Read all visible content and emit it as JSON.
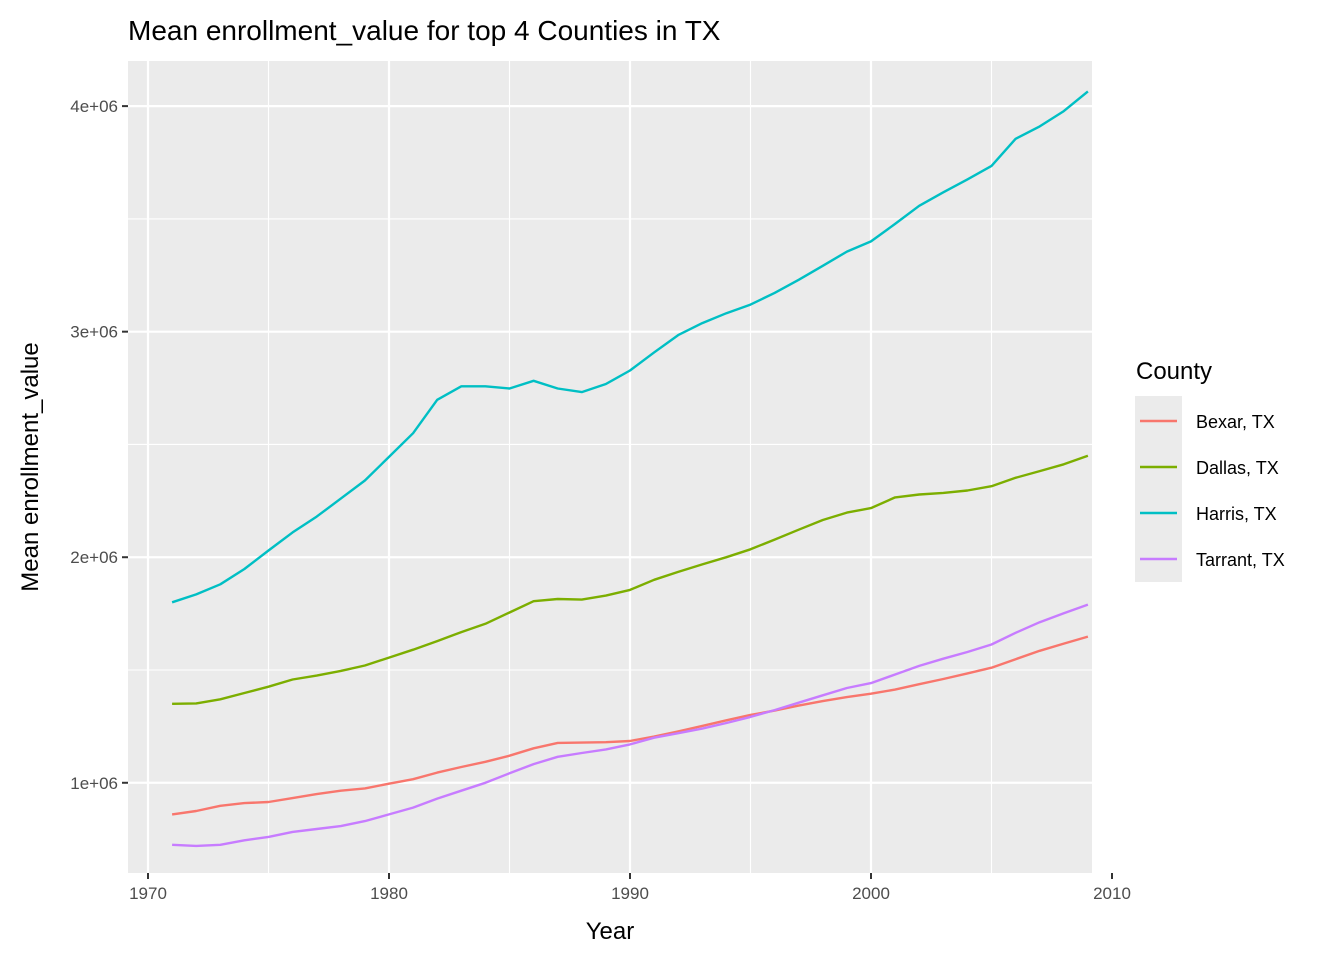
{
  "chart_data": {
    "type": "line",
    "title": "Mean enrollment_value for top 4 Counties in TX",
    "xlabel": "Year",
    "ylabel": "Mean enrollment_value",
    "xlim": [
      1970,
      2010
    ],
    "ylim": [
      600000,
      4200000
    ],
    "x_ticks": [
      1970,
      1980,
      1990,
      2000,
      2010
    ],
    "x_tick_labels": [
      "1970",
      "1980",
      "1990",
      "2000",
      "2010"
    ],
    "y_ticks": [
      1000000,
      2000000,
      3000000,
      4000000
    ],
    "y_tick_labels": [
      "1e+06",
      "2e+06",
      "3e+06",
      "4e+06"
    ],
    "grid": true,
    "legend_title": "County",
    "legend_placement": "right",
    "x": [
      1971,
      1972,
      1973,
      1974,
      1975,
      1976,
      1977,
      1978,
      1979,
      1980,
      1981,
      1982,
      1983,
      1984,
      1985,
      1986,
      1987,
      1988,
      1989,
      1990,
      1991,
      1992,
      1993,
      1994,
      1995,
      1996,
      1997,
      1998,
      1999,
      2000,
      2001,
      2002,
      2003,
      2004,
      2005,
      2006,
      2007,
      2008,
      2009
    ],
    "series": [
      {
        "name": "Bexar, TX",
        "color": "#F8766D",
        "values": [
          860000,
          875000,
          898000,
          910000,
          915000,
          932000,
          950000,
          965000,
          975000,
          996000,
          1016000,
          1045000,
          1070000,
          1093000,
          1120000,
          1153000,
          1177000,
          1178000,
          1180000,
          1185000,
          1205000,
          1228000,
          1252000,
          1277000,
          1301000,
          1320000,
          1342000,
          1362000,
          1380000,
          1395000,
          1413000,
          1437000,
          1460000,
          1485000,
          1510000,
          1548000,
          1585000,
          1617000,
          1648000
        ]
      },
      {
        "name": "Dallas, TX",
        "color": "#7CAE00",
        "values": [
          1350000,
          1352000,
          1370000,
          1398000,
          1426000,
          1458000,
          1475000,
          1496000,
          1520000,
          1555000,
          1590000,
          1628000,
          1668000,
          1705000,
          1755000,
          1805000,
          1815000,
          1812000,
          1830000,
          1855000,
          1900000,
          1935000,
          1968000,
          2000000,
          2035000,
          2078000,
          2122000,
          2165000,
          2198000,
          2218000,
          2265000,
          2278000,
          2285000,
          2296000,
          2315000,
          2352000,
          2382000,
          2412000,
          2450000
        ]
      },
      {
        "name": "Harris, TX",
        "color": "#00BFC4",
        "values": [
          1800000,
          1835000,
          1880000,
          1948000,
          2030000,
          2110000,
          2180000,
          2260000,
          2340000,
          2445000,
          2550000,
          2698000,
          2758000,
          2758000,
          2748000,
          2782000,
          2748000,
          2732000,
          2768000,
          2828000,
          2908000,
          2985000,
          3038000,
          3082000,
          3120000,
          3172000,
          3230000,
          3292000,
          3355000,
          3400000,
          3478000,
          3558000,
          3618000,
          3675000,
          3735000,
          3855000,
          3910000,
          3978000,
          4065000
        ]
      },
      {
        "name": "Tarrant, TX",
        "color": "#C77CFF",
        "values": [
          725000,
          720000,
          725000,
          745000,
          760000,
          782000,
          795000,
          808000,
          830000,
          860000,
          890000,
          930000,
          965000,
          1000000,
          1042000,
          1083000,
          1115000,
          1132000,
          1148000,
          1170000,
          1200000,
          1220000,
          1240000,
          1265000,
          1292000,
          1322000,
          1355000,
          1388000,
          1420000,
          1442000,
          1480000,
          1518000,
          1550000,
          1580000,
          1613000,
          1665000,
          1712000,
          1752000,
          1790000
        ]
      }
    ]
  }
}
